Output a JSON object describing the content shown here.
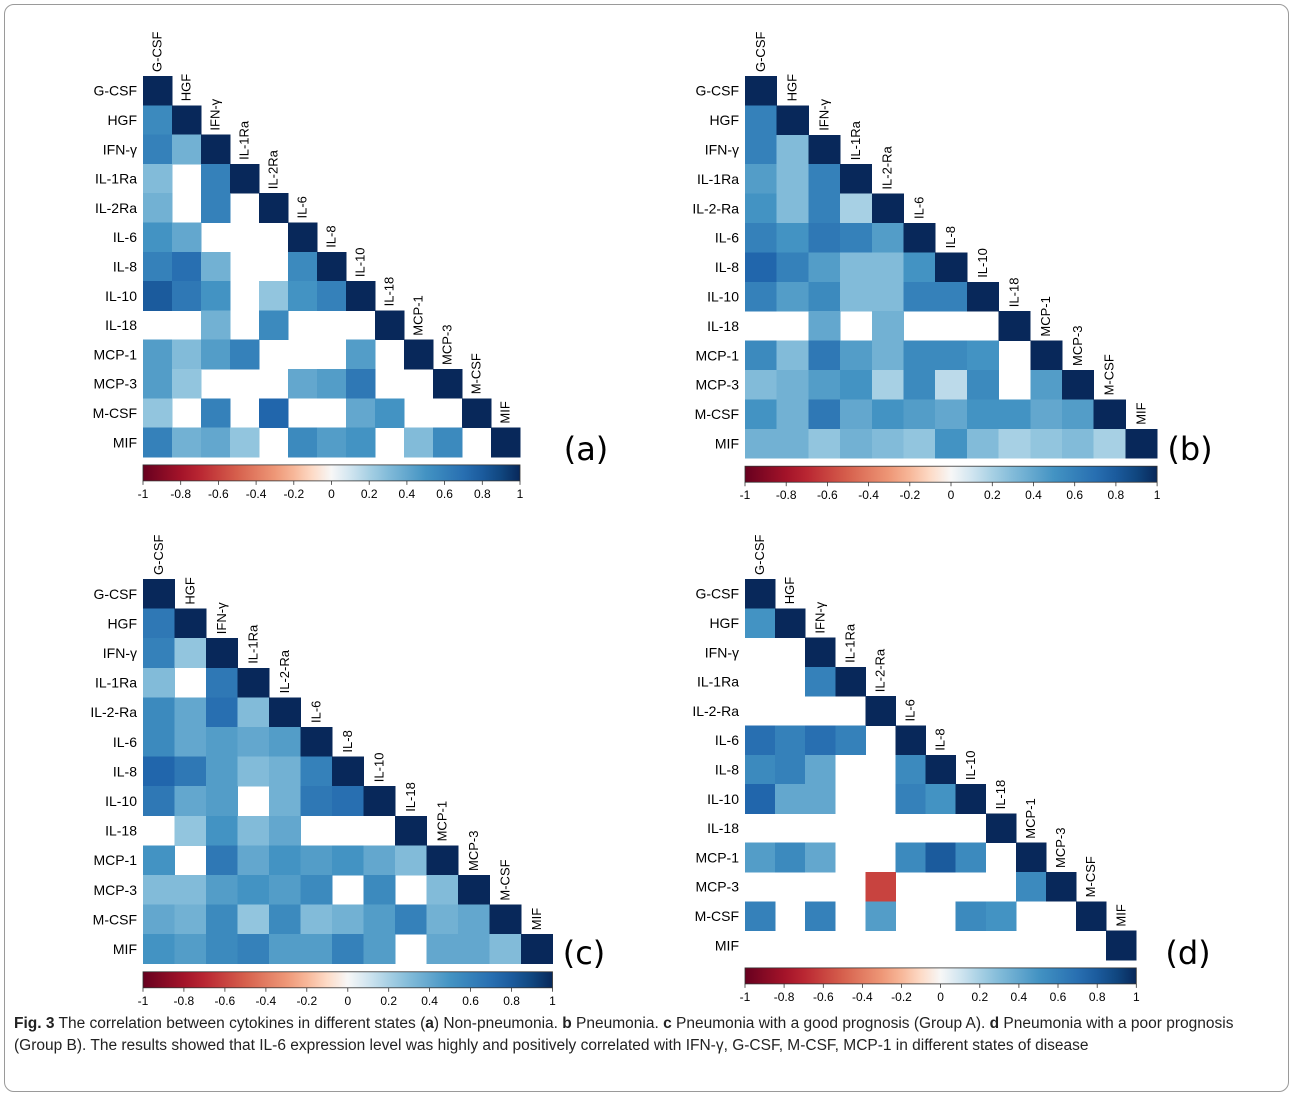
{
  "chart_data": [
    {
      "type": "heatmap",
      "panel_label": "(a)",
      "variables": [
        "G-CSF",
        "HGF",
        "IFN-γ",
        "IL-1Ra",
        "IL-2Ra",
        "IL-6",
        "IL-8",
        "IL-10",
        "IL-18",
        "MCP-1",
        "MCP-3",
        "M-CSF",
        "MIF"
      ],
      "colorbar_ticks": [
        "-1",
        "-0.8",
        "-0.6",
        "-0.4",
        "-0.2",
        "0",
        "0.2",
        "0.4",
        "0.6",
        "0.8",
        "1"
      ],
      "colorbar_range": [
        -1,
        1
      ],
      "values": [
        [
          1
        ],
        [
          0.55,
          1
        ],
        [
          0.6,
          0.35,
          1
        ],
        [
          0.3,
          null,
          0.6,
          1
        ],
        [
          0.35,
          null,
          0.6,
          null,
          1
        ],
        [
          0.5,
          0.4,
          null,
          null,
          null,
          1
        ],
        [
          0.6,
          0.7,
          0.35,
          null,
          null,
          0.55,
          1
        ],
        [
          0.8,
          0.65,
          0.5,
          null,
          0.25,
          0.5,
          0.6,
          1
        ],
        [
          null,
          null,
          0.35,
          null,
          0.55,
          null,
          null,
          null,
          1
        ],
        [
          0.45,
          0.3,
          0.45,
          0.6,
          null,
          null,
          null,
          0.45,
          null,
          1
        ],
        [
          0.45,
          0.25,
          null,
          null,
          null,
          0.4,
          0.45,
          0.65,
          null,
          null,
          1
        ],
        [
          0.25,
          null,
          0.6,
          null,
          0.75,
          null,
          null,
          0.4,
          0.5,
          null,
          null,
          1
        ],
        [
          0.6,
          0.35,
          0.4,
          0.25,
          null,
          0.55,
          0.45,
          0.5,
          null,
          0.3,
          0.55,
          null,
          1
        ]
      ]
    },
    {
      "type": "heatmap",
      "panel_label": "(b)",
      "variables": [
        "G-CSF",
        "HGF",
        "IFN-γ",
        "IL-1Ra",
        "IL-2-Ra",
        "IL-6",
        "IL-8",
        "IL-10",
        "IL-18",
        "MCP-1",
        "MCP-3",
        "M-CSF",
        "MIF"
      ],
      "colorbar_ticks": [
        "-1",
        "-0.8",
        "-0.6",
        "-0.4",
        "-0.2",
        "0",
        "0.2",
        "0.4",
        "0.6",
        "0.8",
        "1"
      ],
      "colorbar_range": [
        -1,
        1
      ],
      "values": [
        [
          1
        ],
        [
          0.6,
          1
        ],
        [
          0.6,
          0.3,
          1
        ],
        [
          0.45,
          0.3,
          0.6,
          1
        ],
        [
          0.5,
          0.3,
          0.6,
          0.2,
          1
        ],
        [
          0.6,
          0.5,
          0.65,
          0.6,
          0.45,
          1
        ],
        [
          0.75,
          0.6,
          0.45,
          0.3,
          0.3,
          0.5,
          1
        ],
        [
          0.6,
          0.45,
          0.55,
          0.3,
          0.3,
          0.6,
          0.6,
          1
        ],
        [
          null,
          null,
          0.4,
          null,
          0.35,
          null,
          null,
          null,
          1
        ],
        [
          0.55,
          0.3,
          0.65,
          0.45,
          0.35,
          0.55,
          0.55,
          0.5,
          null,
          1
        ],
        [
          0.3,
          0.35,
          0.45,
          0.5,
          0.2,
          0.55,
          0.15,
          0.55,
          null,
          0.45,
          1
        ],
        [
          0.5,
          0.35,
          0.65,
          0.4,
          0.5,
          0.45,
          0.4,
          0.5,
          0.5,
          0.4,
          0.45,
          1
        ],
        [
          0.35,
          0.35,
          0.25,
          0.35,
          0.3,
          0.25,
          0.5,
          0.3,
          0.2,
          0.25,
          0.3,
          0.2,
          1
        ]
      ]
    },
    {
      "type": "heatmap",
      "panel_label": "(c)",
      "variables": [
        "G-CSF",
        "HGF",
        "IFN-γ",
        "IL-1Ra",
        "IL-2-Ra",
        "IL-6",
        "IL-8",
        "IL-10",
        "IL-18",
        "MCP-1",
        "MCP-3",
        "M-CSF",
        "MIF"
      ],
      "colorbar_ticks": [
        "-1",
        "-0.8",
        "-0.6",
        "-0.4",
        "-0.2",
        "0",
        "0.2",
        "0.4",
        "0.6",
        "0.8",
        "1"
      ],
      "colorbar_range": [
        -1,
        1
      ],
      "values": [
        [
          1
        ],
        [
          0.65,
          1
        ],
        [
          0.6,
          0.25,
          1
        ],
        [
          0.3,
          null,
          0.65,
          1
        ],
        [
          0.55,
          0.4,
          0.7,
          0.3,
          1
        ],
        [
          0.55,
          0.4,
          0.45,
          0.4,
          0.45,
          1
        ],
        [
          0.75,
          0.65,
          0.45,
          0.3,
          0.35,
          0.6,
          1
        ],
        [
          0.65,
          0.4,
          0.45,
          null,
          0.35,
          0.65,
          0.7,
          1
        ],
        [
          null,
          0.25,
          0.5,
          0.3,
          0.4,
          null,
          null,
          null,
          1
        ],
        [
          0.5,
          null,
          0.65,
          0.4,
          0.5,
          0.45,
          0.5,
          0.4,
          0.3,
          1
        ],
        [
          0.3,
          0.3,
          0.45,
          0.5,
          0.45,
          0.55,
          null,
          0.55,
          null,
          0.3,
          1
        ],
        [
          0.4,
          0.35,
          0.55,
          0.25,
          0.55,
          0.3,
          0.35,
          0.45,
          0.6,
          0.35,
          0.4,
          1
        ],
        [
          0.5,
          0.45,
          0.55,
          0.6,
          0.45,
          0.45,
          0.6,
          0.45,
          null,
          0.4,
          0.4,
          0.3,
          1
        ]
      ]
    },
    {
      "type": "heatmap",
      "panel_label": "(d)",
      "variables": [
        "G-CSF",
        "HGF",
        "IFN-γ",
        "IL-1Ra",
        "IL-2-Ra",
        "IL-6",
        "IL-8",
        "IL-10",
        "IL-18",
        "MCP-1",
        "MCP-3",
        "M-CSF",
        "MIF"
      ],
      "colorbar_ticks": [
        "-1",
        "-0.8",
        "-0.6",
        "-0.4",
        "-0.2",
        "0",
        "0.2",
        "0.4",
        "0.6",
        "0.8",
        "1"
      ],
      "colorbar_range": [
        -1,
        1
      ],
      "values": [
        [
          1
        ],
        [
          0.5,
          1
        ],
        [
          null,
          null,
          1
        ],
        [
          null,
          null,
          0.6,
          1
        ],
        [
          null,
          null,
          null,
          null,
          1
        ],
        [
          0.7,
          0.6,
          0.7,
          0.6,
          null,
          1
        ],
        [
          0.55,
          0.6,
          0.4,
          null,
          null,
          0.55,
          1
        ],
        [
          0.75,
          0.4,
          0.4,
          null,
          null,
          0.6,
          0.5,
          1
        ],
        [
          null,
          null,
          null,
          null,
          null,
          null,
          null,
          null,
          1
        ],
        [
          0.45,
          0.55,
          0.4,
          null,
          null,
          0.55,
          0.8,
          0.55,
          null,
          1
        ],
        [
          null,
          null,
          null,
          null,
          -0.6,
          null,
          null,
          null,
          null,
          0.55,
          1
        ],
        [
          0.6,
          null,
          0.6,
          null,
          0.45,
          null,
          null,
          0.55,
          0.5,
          null,
          null,
          1
        ],
        [
          null,
          null,
          null,
          null,
          null,
          null,
          null,
          null,
          null,
          null,
          null,
          null,
          1
        ]
      ]
    }
  ],
  "caption": {
    "fig_label": "Fig. 3",
    "t1": "  The correlation between cytokines in different states (",
    "a": "a",
    "t2": ") Non-pneumonia. ",
    "b": "b",
    "t3": " Pneumonia. ",
    "c": "c",
    "t4": " Pneumonia with a good prognosis (Group A). ",
    "d": "d",
    "t5": " Pneumonia with a poor prognosis (Group B). The results showed that IL-6 expression level was highly and positively correlated with IFN-γ, G-CSF, M-CSF, MCP-1 in different states of disease"
  }
}
